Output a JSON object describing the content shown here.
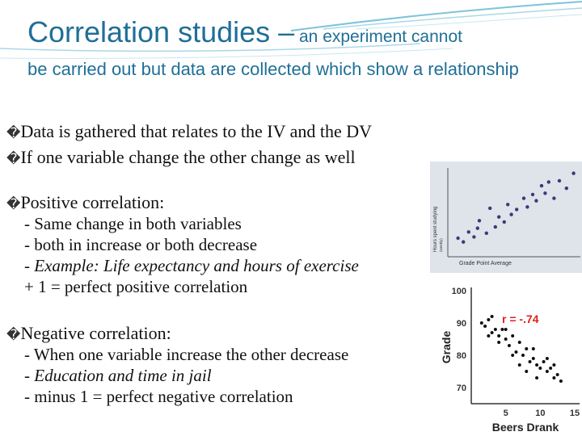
{
  "title": {
    "main": "Correlation studies –",
    "tail": " an experiment cannot",
    "line2": "be carried out but data are collected which show a relationship"
  },
  "bullets": {
    "marker": "�",
    "b1": "Data is gathered that relates to the IV and the DV",
    "b2": "If one variable change the other change as well",
    "positive": {
      "heading": "Positive correlation:",
      "l1": "- Same change in both variables",
      "l2": "- both in increase or both decrease",
      "l3": "- Example: Life expectancy and hours of exercise",
      "l4": "+ 1 = perfect positive correlation"
    },
    "negative": {
      "heading": "Negative correlation:",
      "l1": "- When one variable increase the other decrease",
      "l2": "- Education and time in jail",
      "l3": "- minus  1 = perfect negative correlation"
    }
  },
  "colors": {
    "title": "#1f6f97",
    "chart_bg": "#dfe3ea",
    "r_text": "#e0201e"
  },
  "chart_data": [
    {
      "type": "scatter",
      "title": "",
      "xlabel": "Grade Point Average",
      "ylabel": "Hours spent studying",
      "y_sub": "(weekly)",
      "points": [
        [
          0.3,
          1.1
        ],
        [
          0.6,
          0.8
        ],
        [
          0.9,
          1.6
        ],
        [
          1.2,
          1.2
        ],
        [
          1.4,
          1.9
        ],
        [
          1.5,
          2.5
        ],
        [
          1.9,
          1.5
        ],
        [
          2.1,
          3.5
        ],
        [
          2.4,
          2.0
        ],
        [
          2.6,
          2.8
        ],
        [
          2.9,
          2.4
        ],
        [
          3.1,
          3.8
        ],
        [
          3.3,
          3.0
        ],
        [
          3.6,
          3.4
        ],
        [
          4.0,
          4.3
        ],
        [
          4.2,
          3.6
        ],
        [
          4.5,
          4.6
        ],
        [
          4.7,
          4.1
        ],
        [
          5.0,
          5.3
        ],
        [
          5.2,
          4.7
        ],
        [
          5.4,
          5.6
        ],
        [
          5.7,
          4.3
        ],
        [
          6.0,
          5.7
        ],
        [
          6.4,
          5.1
        ],
        [
          6.8,
          6.3
        ]
      ]
    },
    {
      "type": "scatter",
      "xlabel": "Beers Drank",
      "ylabel": "Grade",
      "x_ticks": [
        "5",
        "10",
        "15"
      ],
      "y_ticks": [
        "100",
        "90",
        "80",
        "70"
      ],
      "xlim": [
        0,
        15
      ],
      "ylim": [
        65,
        100
      ],
      "annotation": "r = -.74",
      "points": [
        [
          1.5,
          90
        ],
        [
          2.0,
          89
        ],
        [
          2.5,
          91
        ],
        [
          3.0,
          87
        ],
        [
          3.5,
          88
        ],
        [
          4.0,
          86
        ],
        [
          4.5,
          88
        ],
        [
          5.0,
          85
        ],
        [
          5.5,
          83
        ],
        [
          6.0,
          86
        ],
        [
          6.5,
          81
        ],
        [
          7.0,
          84
        ],
        [
          7.5,
          80
        ],
        [
          8.0,
          82
        ],
        [
          8.5,
          78
        ],
        [
          9.0,
          79
        ],
        [
          9.5,
          77
        ],
        [
          10.0,
          76
        ],
        [
          10.5,
          78
        ],
        [
          11.0,
          75
        ],
        [
          11.5,
          76
        ],
        [
          12.0,
          73
        ],
        [
          12.5,
          74
        ],
        [
          13.0,
          72
        ],
        [
          6.0,
          80
        ],
        [
          7.0,
          77
        ],
        [
          8.0,
          75
        ],
        [
          9.0,
          82
        ],
        [
          5.0,
          88
        ],
        [
          3.0,
          92
        ],
        [
          11.0,
          79
        ],
        [
          12.0,
          77
        ],
        [
          4.0,
          84
        ],
        [
          9.5,
          73
        ],
        [
          2.5,
          86
        ]
      ]
    }
  ]
}
